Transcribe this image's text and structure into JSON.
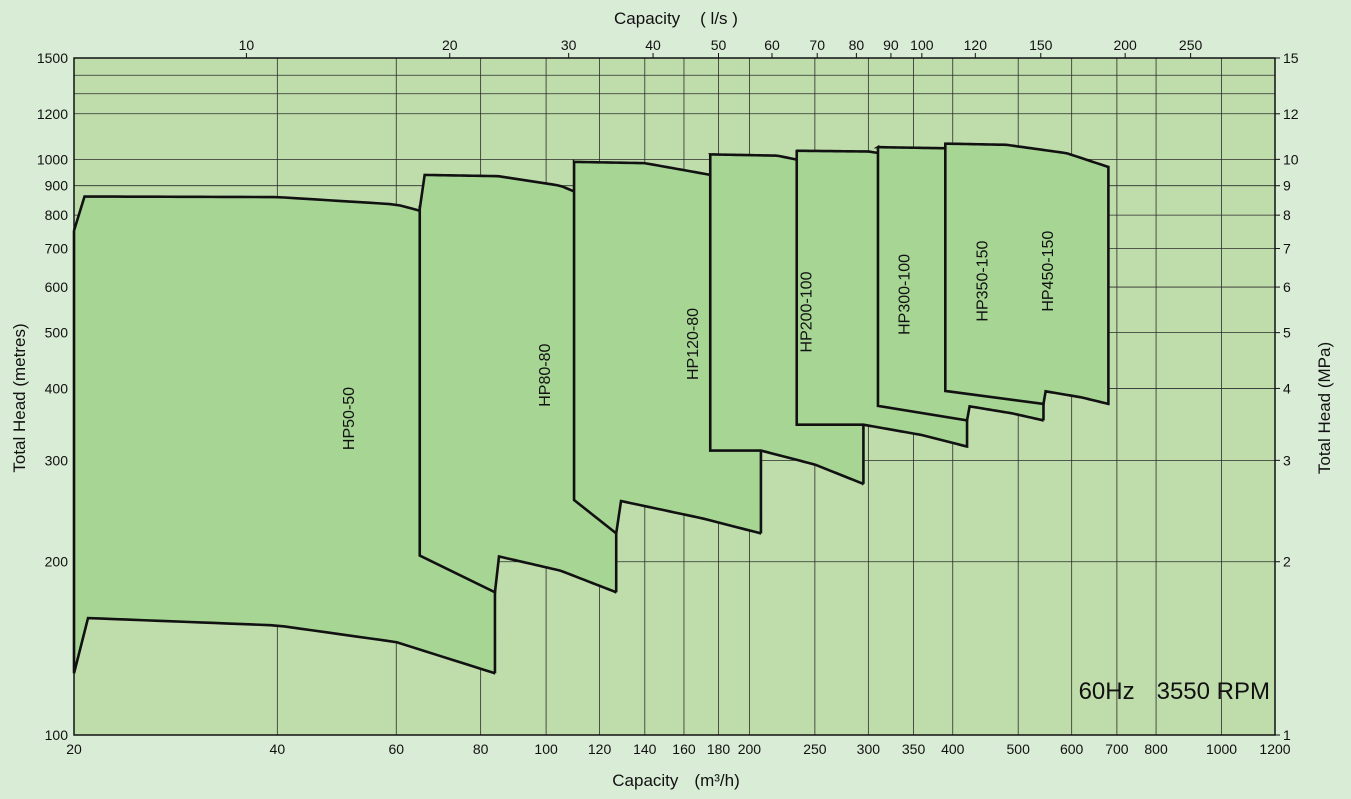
{
  "chart_data": {
    "type": "area",
    "scale": "log-log",
    "grid": true,
    "x_bottom": {
      "label": "Capacity",
      "unit": "(m³/h)",
      "range": [
        20,
        1200
      ],
      "ticks": [
        "20",
        "40",
        "60",
        "80",
        "100",
        "120",
        "140",
        "160",
        "180",
        "200",
        "250",
        "300",
        "350",
        "400",
        "500",
        "600",
        "700",
        "800",
        "1000",
        "1200"
      ]
    },
    "x_top": {
      "label": "Capacity",
      "unit": "( l/s )",
      "ticks": [
        "10",
        "20",
        "30",
        "40",
        "50",
        "60",
        "70",
        "80",
        "90",
        "100",
        "120",
        "150",
        "200",
        "250"
      ]
    },
    "y_left": {
      "label": "Total Head (metres)",
      "range": [
        100,
        1500
      ],
      "ticks": [
        "100",
        "200",
        "300",
        "400",
        "500",
        "600",
        "700",
        "800",
        "900",
        "1000",
        "1200",
        "1500"
      ]
    },
    "y_right": {
      "label": "Total Head (MPa)",
      "ticks": [
        "1",
        "2",
        "3",
        "4",
        "5",
        "6",
        "7",
        "8",
        "9",
        "10",
        "12",
        "15"
      ]
    },
    "series": [
      {
        "name": "HP50-50",
        "q_min": 20,
        "q_max": 84,
        "top_curve": [
          [
            20,
            862
          ],
          [
            40,
            860
          ],
          [
            60,
            835
          ],
          [
            84,
            752
          ]
        ],
        "bottom_curve": [
          [
            20,
            160
          ],
          [
            40,
            155
          ],
          [
            60,
            145
          ],
          [
            84,
            128
          ]
        ]
      },
      {
        "name": "HP80-80",
        "q_min": 65,
        "q_max": 127,
        "top_curve": [
          [
            65,
            940
          ],
          [
            85,
            935
          ],
          [
            105,
            900
          ],
          [
            127,
            820
          ]
        ],
        "bottom_curve": [
          [
            84,
            205
          ],
          [
            105,
            193
          ],
          [
            127,
            177
          ]
        ]
      },
      {
        "name": "HP120-80",
        "q_min": 110,
        "q_max": 208,
        "top_curve": [
          [
            110,
            990
          ],
          [
            140,
            985
          ],
          [
            175,
            940
          ],
          [
            208,
            865
          ]
        ],
        "bottom_curve": [
          [
            127,
            256
          ],
          [
            170,
            238
          ],
          [
            208,
            224
          ]
        ]
      },
      {
        "name": "HP200-100",
        "q_min": 175,
        "q_max": 295,
        "top_curve": [
          [
            175,
            1020
          ],
          [
            220,
            1015
          ],
          [
            260,
            975
          ],
          [
            295,
            905
          ]
        ],
        "bottom_curve": [
          [
            208,
            312
          ],
          [
            250,
            295
          ],
          [
            295,
            273
          ]
        ]
      },
      {
        "name": "HP300-100",
        "q_min": 235,
        "q_max": 420,
        "top_curve": [
          [
            235,
            1035
          ],
          [
            300,
            1032
          ],
          [
            360,
            1000
          ],
          [
            420,
            925
          ]
        ],
        "bottom_curve": [
          [
            295,
            346
          ],
          [
            360,
            332
          ],
          [
            420,
            317
          ]
        ]
      },
      {
        "name": "HP350-150",
        "q_min": 310,
        "q_max": 545,
        "top_curve": [
          [
            310,
            1050
          ],
          [
            400,
            1045
          ],
          [
            480,
            1005
          ],
          [
            545,
            950
          ]
        ],
        "bottom_curve": [
          [
            420,
            373
          ],
          [
            490,
            362
          ],
          [
            545,
            352
          ]
        ]
      },
      {
        "name": "HP450-150",
        "q_min": 390,
        "q_max": 680,
        "top_curve": [
          [
            390,
            1065
          ],
          [
            480,
            1060
          ],
          [
            590,
            1025
          ],
          [
            680,
            970
          ]
        ],
        "bottom_curve": [
          [
            545,
            396
          ],
          [
            620,
            386
          ],
          [
            680,
            376
          ]
        ]
      }
    ],
    "annotation": {
      "frequency": "60Hz",
      "speed": "3550 RPM"
    },
    "colors": {
      "page_background": "#d9ecd6",
      "plot_background": "#bfdcab",
      "region_fill": "#a6d594",
      "grid": "#2c2c2c",
      "outline": "#111111"
    }
  }
}
